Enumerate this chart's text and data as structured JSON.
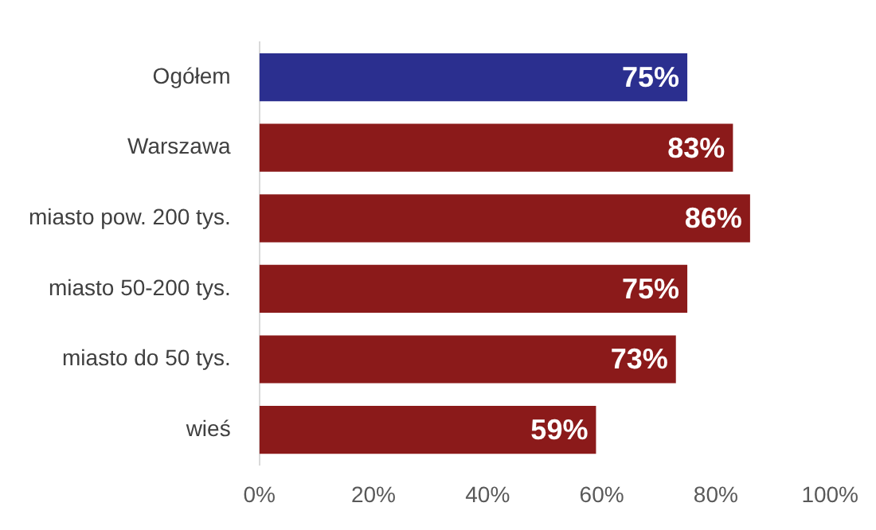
{
  "chart_data": {
    "type": "bar",
    "orientation": "horizontal",
    "categories": [
      "Ogółem",
      "Warszawa",
      "miasto pow. 200 tys.",
      "miasto 50-200 tys.",
      "miasto do 50 tys.",
      "wieś"
    ],
    "values": [
      75,
      83,
      86,
      75,
      73,
      59
    ],
    "colors": [
      "#2b2f8f",
      "#8b1a1a",
      "#8b1a1a",
      "#8b1a1a",
      "#8b1a1a",
      "#8b1a1a"
    ],
    "value_labels": [
      "75%",
      "83%",
      "86%",
      "75%",
      "73%",
      "59%"
    ],
    "xlim": [
      0,
      100
    ],
    "xticks": [
      {
        "value": 0,
        "label": "0%"
      },
      {
        "value": 20,
        "label": "20%"
      },
      {
        "value": 40,
        "label": "40%"
      },
      {
        "value": 60,
        "label": "60%"
      },
      {
        "value": 80,
        "label": "80%"
      },
      {
        "value": 100,
        "label": "100%"
      }
    ],
    "grid": false,
    "legend": false
  }
}
